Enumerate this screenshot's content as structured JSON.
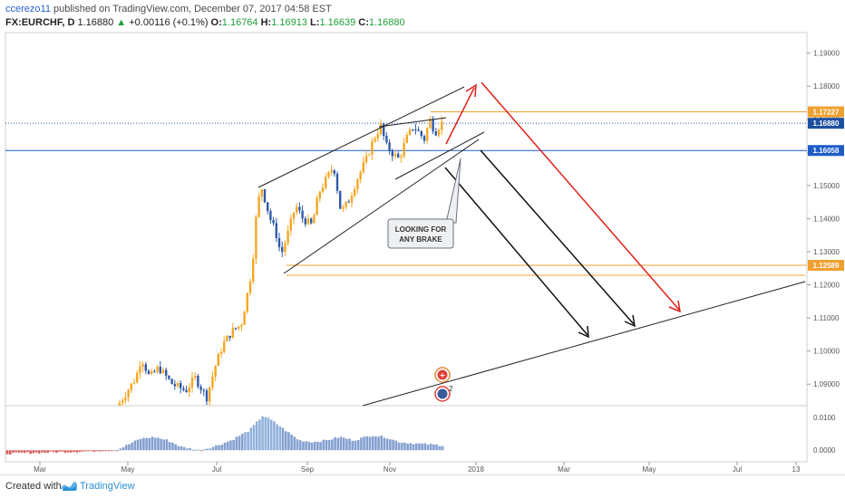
{
  "header": {
    "author": "ccerezo11",
    "published_text": "published on TradingView.com, December 07, 2017 04:58 EST",
    "symbol": "FX:EURCHF, D",
    "last": "1.16880",
    "change": "+0.00116 (+0.1%)",
    "ohlc": [
      {
        "label": "O:",
        "value": "1.16764"
      },
      {
        "label": "H:",
        "value": "1.16913"
      },
      {
        "label": "L:",
        "value": "1.16639"
      },
      {
        "label": "C:",
        "value": "1.16880"
      }
    ]
  },
  "annotation": {
    "text_line1": "LOOKING FOR",
    "text_line2": "ANY BRAKE"
  },
  "footer": {
    "created_with": "Created with",
    "brand": "TradingView"
  },
  "chart_data": {
    "type": "candlestick",
    "price_axis": {
      "ticks": [
        "1.19000",
        "1.18000",
        "1.17000",
        "1.16000",
        "1.15000",
        "1.14000",
        "1.13000",
        "1.12000",
        "1.11000",
        "1.10000",
        "1.09000"
      ],
      "ylim": [
        1.0835,
        1.1962
      ]
    },
    "time_axis": {
      "ticks": [
        "Mar",
        "May",
        "Jul",
        "Sep",
        "Nov",
        "2018",
        "Mar",
        "May",
        "Jul",
        "13"
      ]
    },
    "price_labels": [
      {
        "value": "1.17227",
        "color": "#f0a030"
      },
      {
        "value": "1.16880",
        "color": "#1e4fa0"
      },
      {
        "value": "1.16058",
        "color": "#1e5cc8"
      },
      {
        "value": "1.12589",
        "color": "#f0a030"
      }
    ],
    "horizontal_lines": [
      {
        "price": 1.17227,
        "color": "#f0a030",
        "style": "solid"
      },
      {
        "price": 1.1688,
        "color": "#1e4fa0",
        "style": "dotted"
      },
      {
        "price": 1.16058,
        "color": "#1e5cc8",
        "style": "solid"
      },
      {
        "price": 1.12589,
        "color": "#f0a030",
        "style": "solid"
      }
    ],
    "channel": {
      "upper": [
        [
          1.153,
          1.172
        ]
      ],
      "lower": [
        [
          1.1256,
          1.1683
        ]
      ]
    },
    "oscillator": {
      "ticks": [
        "0.0100",
        "0.0000"
      ],
      "ylim": [
        -0.0035,
        0.0135
      ]
    },
    "up_color": "#f5a623",
    "down_color": "#2e5aa8"
  }
}
